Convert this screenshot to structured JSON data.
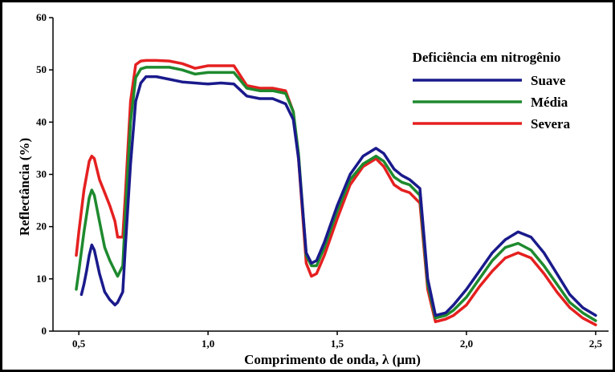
{
  "chart_data": {
    "type": "line",
    "title": "",
    "xlabel": "Comprimento de onda, λ (µm)",
    "ylabel": "Reflectância (%)",
    "xlim": [
      0.4,
      2.55
    ],
    "ylim": [
      0,
      60
    ],
    "xticks": [
      0.5,
      1.0,
      1.5,
      2.0,
      2.5
    ],
    "xtick_labels": [
      "0,5",
      "1,0",
      "1,5",
      "2,0",
      "2,5"
    ],
    "yticks": [
      0,
      10,
      20,
      30,
      40,
      50,
      60
    ],
    "ytick_labels": [
      "0",
      "10",
      "20",
      "30",
      "40",
      "50",
      "60"
    ],
    "grid": false,
    "legend_title": "Deficiência em nitrogênio",
    "legend_placement": "top-right",
    "series": [
      {
        "name": "Suave",
        "color": "#1a1a8c",
        "x": [
          0.51,
          0.52,
          0.53,
          0.54,
          0.55,
          0.56,
          0.58,
          0.6,
          0.62,
          0.64,
          0.65,
          0.67,
          0.68,
          0.7,
          0.72,
          0.74,
          0.76,
          0.8,
          0.85,
          0.9,
          0.95,
          1.0,
          1.05,
          1.1,
          1.15,
          1.2,
          1.25,
          1.3,
          1.33,
          1.35,
          1.38,
          1.4,
          1.42,
          1.45,
          1.5,
          1.55,
          1.6,
          1.65,
          1.68,
          1.72,
          1.75,
          1.78,
          1.82,
          1.85,
          1.88,
          1.92,
          1.95,
          2.0,
          2.05,
          2.1,
          2.15,
          2.2,
          2.25,
          2.3,
          2.35,
          2.4,
          2.45,
          2.5
        ],
        "y": [
          7,
          9,
          11.5,
          14.5,
          16.5,
          15.5,
          11,
          7.5,
          6,
          5,
          5.5,
          7.5,
          16,
          32,
          44,
          47.5,
          48.7,
          48.7,
          48.2,
          47.7,
          47.5,
          47.3,
          47.5,
          47.3,
          45,
          44.5,
          44.5,
          43.5,
          40.5,
          33,
          15,
          13,
          13.5,
          17,
          24,
          30,
          33.5,
          35,
          34,
          31,
          29.8,
          29,
          27.3,
          10,
          3,
          3.5,
          5,
          8,
          11.5,
          15,
          17.5,
          19,
          18,
          15,
          11,
          7,
          4.5,
          3
        ]
      },
      {
        "name": "Média",
        "color": "#1e8a2e",
        "x": [
          0.49,
          0.5,
          0.52,
          0.54,
          0.55,
          0.56,
          0.58,
          0.6,
          0.62,
          0.64,
          0.65,
          0.67,
          0.68,
          0.7,
          0.72,
          0.74,
          0.76,
          0.8,
          0.85,
          0.9,
          0.95,
          1.0,
          1.05,
          1.1,
          1.15,
          1.2,
          1.25,
          1.3,
          1.33,
          1.35,
          1.38,
          1.4,
          1.42,
          1.45,
          1.5,
          1.55,
          1.6,
          1.65,
          1.68,
          1.72,
          1.75,
          1.78,
          1.82,
          1.85,
          1.88,
          1.92,
          1.95,
          2.0,
          2.05,
          2.1,
          2.15,
          2.2,
          2.25,
          2.3,
          2.35,
          2.4,
          2.45,
          2.5
        ],
        "y": [
          8,
          11.5,
          19,
          25.5,
          27,
          26,
          21,
          16,
          13.5,
          11.5,
          10.5,
          12.5,
          22,
          40,
          48.5,
          50.2,
          50.5,
          50.5,
          50.5,
          50,
          49.2,
          49.5,
          49.5,
          49.5,
          46.5,
          46,
          46,
          45.5,
          42,
          34,
          14.5,
          12.5,
          12.5,
          16,
          23,
          29,
          32,
          33.5,
          32.5,
          29.5,
          28.5,
          28,
          26,
          9,
          2.5,
          3,
          4,
          6.5,
          10,
          13.5,
          16,
          16.8,
          15.5,
          12.5,
          9,
          5.5,
          3.5,
          2
        ]
      },
      {
        "name": "Severa",
        "color": "#e52020",
        "x": [
          0.49,
          0.5,
          0.52,
          0.54,
          0.55,
          0.56,
          0.58,
          0.6,
          0.62,
          0.64,
          0.65,
          0.67,
          0.68,
          0.7,
          0.72,
          0.74,
          0.76,
          0.8,
          0.85,
          0.9,
          0.95,
          1.0,
          1.05,
          1.1,
          1.15,
          1.2,
          1.25,
          1.3,
          1.33,
          1.35,
          1.38,
          1.4,
          1.42,
          1.45,
          1.5,
          1.55,
          1.6,
          1.65,
          1.68,
          1.72,
          1.75,
          1.78,
          1.82,
          1.85,
          1.88,
          1.92,
          1.95,
          2.0,
          2.05,
          2.1,
          2.15,
          2.2,
          2.25,
          2.3,
          2.35,
          2.4,
          2.45,
          2.5
        ],
        "y": [
          14.5,
          19,
          27,
          32.5,
          33.5,
          33,
          29,
          26.5,
          24,
          21,
          18,
          18,
          26,
          44,
          51,
          51.7,
          51.8,
          51.8,
          51.7,
          51.2,
          50.3,
          50.8,
          50.8,
          50.8,
          47,
          46.5,
          46.5,
          46,
          42,
          33,
          13,
          10.5,
          11,
          14.5,
          21.5,
          28,
          31.5,
          33,
          31.5,
          28,
          27,
          26.5,
          24.5,
          8,
          1.8,
          2.3,
          3,
          5,
          8.5,
          11.5,
          14,
          15,
          14,
          11,
          7.5,
          4.5,
          2.5,
          1.2
        ]
      }
    ]
  }
}
